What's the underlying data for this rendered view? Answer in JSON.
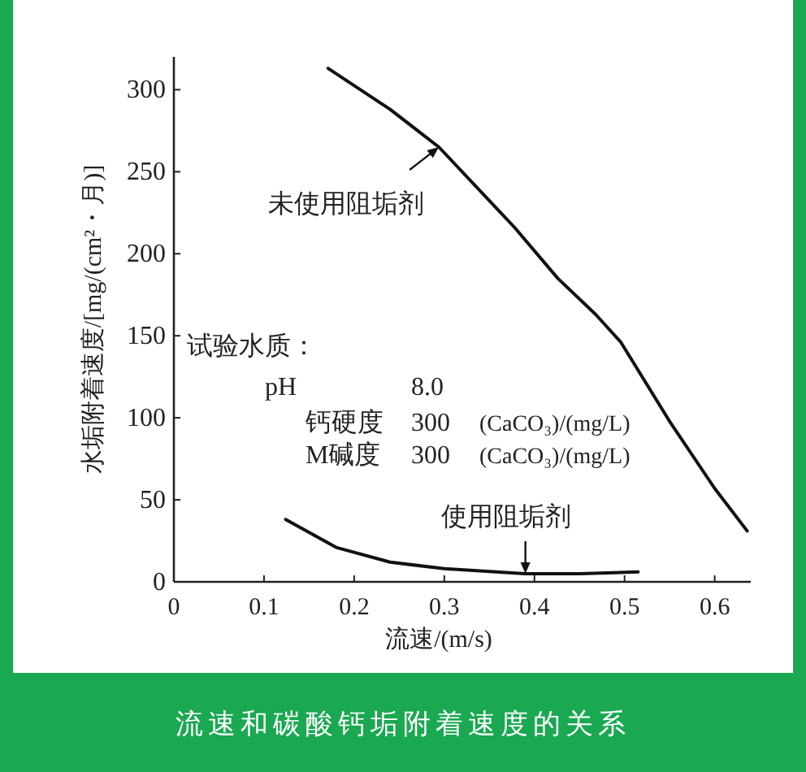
{
  "chart_data": {
    "type": "line",
    "title": "流速和碳酸钙垢附着速度的关系",
    "xlabel": "流速/(m/s)",
    "ylabel": "水垢附着速度/[mg/(cm²・月)]",
    "xlim": [
      0,
      0.64
    ],
    "ylim": [
      0,
      320
    ],
    "xticks": [
      0,
      0.1,
      0.2,
      0.3,
      0.4,
      0.5,
      0.6
    ],
    "yticks": [
      0,
      50,
      100,
      150,
      200,
      250,
      300
    ],
    "series": [
      {
        "color": "#111111",
        "x": [
          0.171,
          0.24,
          0.294,
          0.378,
          0.426,
          0.468,
          0.496,
          0.551,
          0.6,
          0.636
        ],
        "values": [
          313,
          288,
          265,
          216,
          185,
          163,
          146,
          97,
          57,
          31
        ]
      },
      {
        "color": "#111111",
        "x": [
          0.124,
          0.18,
          0.24,
          0.3,
          0.39,
          0.45,
          0.515
        ],
        "values": [
          38,
          21,
          12,
          8,
          5,
          5,
          6
        ]
      }
    ],
    "annotations": [
      {
        "text": "未使用阻垢剂",
        "x": 0.294,
        "y": 265
      },
      {
        "text": "使用阻垢剂",
        "x": 0.39,
        "y": 5
      },
      "试验水质：",
      "pH",
      "8.0",
      "钙硬度",
      "300",
      "(CaCO₃)/(mg/L)",
      "M碱度",
      "300",
      "(CaCO₃)/(mg/L)"
    ]
  }
}
